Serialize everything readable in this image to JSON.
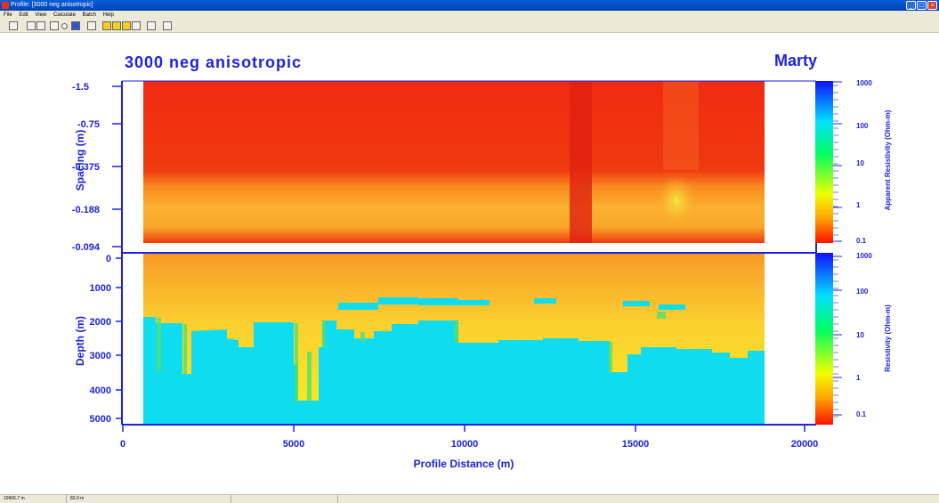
{
  "window": {
    "title": "Profile: [3000 neg anisotropic]",
    "buttons": [
      "minimize",
      "maximize",
      "close"
    ]
  },
  "menu": [
    "File",
    "Edit",
    "View",
    "Calculate",
    "Batch",
    "Help"
  ],
  "toolbar_icons": [
    "new-icon",
    "save-icon",
    "print-icon",
    "view-box-icon",
    "circle-icon",
    "display-icon",
    "properties-icon",
    "panel1-icon",
    "panel2-icon",
    "panel3-icon",
    "chart-icon",
    "person-icon",
    "help-icon"
  ],
  "plot": {
    "title": "3000 neg anisotropic",
    "name": "Marty",
    "top_panel": {
      "ylabel": "Spacing (m)",
      "yticks": [
        "-1.5",
        "-0.75",
        "-0.375",
        "-0.188",
        "-0.094"
      ]
    },
    "bottom_panel": {
      "ylabel": "Depth (m)",
      "yticks": [
        "0",
        "1000",
        "2000",
        "3000",
        "4000",
        "5000"
      ]
    },
    "xlabel": "Profile Distance (m)",
    "xticks": [
      "0",
      "5000",
      "10000",
      "15000",
      "20000"
    ],
    "colorbar_top": {
      "label": "Apparent Resistivity (Ohm-m)",
      "ticks": [
        "1000",
        "100",
        "10",
        "1",
        "0.1"
      ]
    },
    "colorbar_bottom": {
      "label": "Resistivity (Ohm-m)",
      "ticks": [
        "1000",
        "100",
        "10",
        "1",
        "0.1"
      ]
    }
  },
  "status": [
    "19906.7 m",
    "83.9 m",
    ""
  ]
}
